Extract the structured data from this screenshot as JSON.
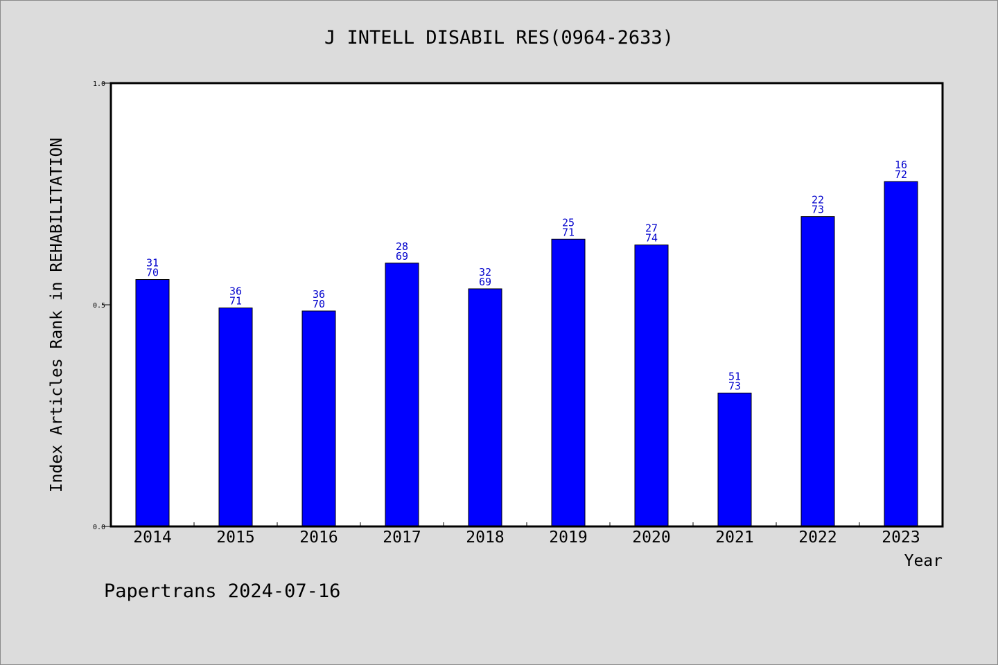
{
  "footer": "Papertrans 2024-07-16",
  "colors": {
    "background": "#dcdcdc",
    "plot_background": "#ffffff",
    "bar": "#0000ff",
    "data_label": "#0000cc"
  },
  "chart_data": {
    "type": "bar",
    "title": "J INTELL DISABIL RES(0964-2633)",
    "xlabel": "Year",
    "ylabel": "Index Articles Rank in REHABILITATION",
    "ylim": [
      0,
      1
    ],
    "yticks": [
      "0.0",
      "0.5",
      "1.0"
    ],
    "grid": false,
    "categories": [
      "2014",
      "2015",
      "2016",
      "2017",
      "2018",
      "2019",
      "2020",
      "2021",
      "2022",
      "2023"
    ],
    "values": [
      0.557,
      0.493,
      0.486,
      0.594,
      0.536,
      0.648,
      0.635,
      0.301,
      0.699,
      0.778
    ],
    "rank_labels": [
      [
        "31",
        "70"
      ],
      [
        "36",
        "71"
      ],
      [
        "36",
        "70"
      ],
      [
        "28",
        "69"
      ],
      [
        "32",
        "69"
      ],
      [
        "25",
        "71"
      ],
      [
        "27",
        "74"
      ],
      [
        "51",
        "73"
      ],
      [
        "22",
        "73"
      ],
      [
        "16",
        "72"
      ]
    ]
  }
}
